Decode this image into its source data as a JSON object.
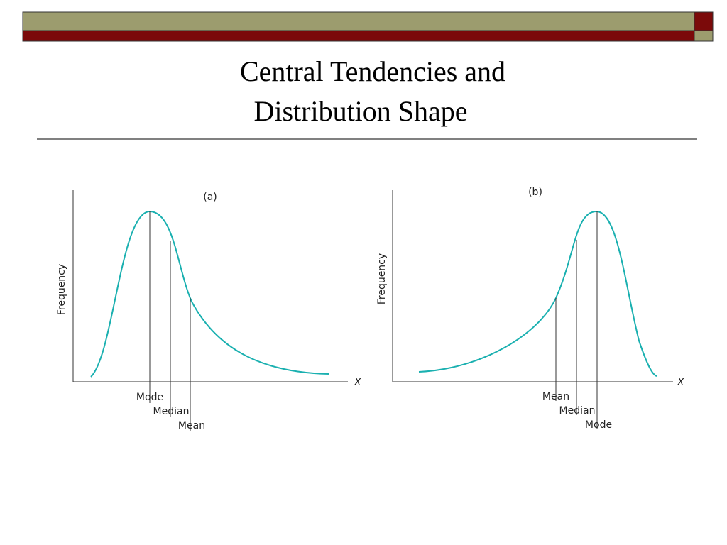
{
  "title": {
    "lines": [
      "Central Tendencies and",
      "Distribution Shape"
    ]
  },
  "panels": [
    {
      "label": "(a)",
      "y_axis_label": "Frequency",
      "x_axis_label": "X",
      "markers": [
        "Mode",
        "Median",
        "Mean"
      ]
    },
    {
      "label": "(b)",
      "y_axis_label": "Frequency",
      "x_axis_label": "X",
      "markers": [
        "Mean",
        "Median",
        "Mode"
      ]
    }
  ]
}
